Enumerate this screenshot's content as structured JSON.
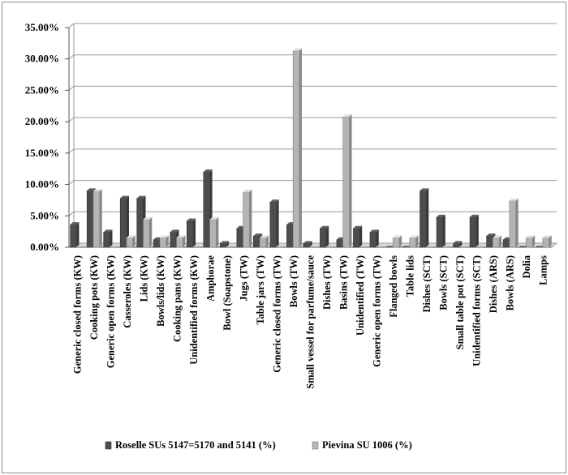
{
  "chart_data": {
    "type": "bar",
    "title": "",
    "xlabel": "",
    "ylabel": "",
    "ylim": [
      0,
      35
    ],
    "y_ticks": [
      "0.00%",
      "5.00%",
      "10.00%",
      "15.00%",
      "20.00%",
      "25.00%",
      "30.00%",
      "35.00%"
    ],
    "grid": true,
    "legend_position": "bottom",
    "categories": [
      "Generic closed forms (KW)",
      "Cooking pots (KW)",
      "Generic open forms (KW)",
      "Casseroles (KW)",
      "Lids (KW)",
      "Bowls/lids (KW)",
      "Cooking pans (KW)",
      "Unidentified forms (KW)",
      "Amphorae",
      "Bowl (Soapstone)",
      "Jugs (TW)",
      "Table jars (TW)",
      "Generic closed forms (TW)",
      "Bowls (TW)",
      "Small vessel for parfume/sauce",
      "Dishes (TW)",
      "Basins (TW)",
      "Unidentified (TW)",
      "Generic open forms  (TW)",
      "Flanged bowls",
      "Table lids",
      "Dishes (SCT)",
      "Bowls (SCT)",
      "Small table pot (SCT)",
      "Unidentified forms (SCT)",
      "Dishes (ARS)",
      "Bowls (ARS)",
      "Dolia",
      "Lamps"
    ],
    "series": [
      {
        "name": "Roselle SUs 5147=5170 and 5141 (%)",
        "color": "#4d4d4d",
        "values": [
          3.6,
          9.0,
          2.4,
          7.8,
          7.8,
          1.2,
          2.4,
          4.2,
          12.0,
          0.6,
          3.0,
          1.8,
          7.2,
          3.6,
          0.6,
          3.0,
          1.2,
          3.0,
          2.4,
          0.0,
          0.0,
          9.0,
          4.8,
          0.6,
          4.8,
          1.8,
          1.2,
          0.0,
          0.0
        ]
      },
      {
        "name": "Pievina SU 1006 (%)",
        "color": "#b4b4b4",
        "values": [
          0.0,
          8.9,
          0.0,
          1.5,
          4.4,
          1.5,
          1.5,
          0.0,
          4.4,
          0.0,
          8.8,
          1.5,
          0.0,
          31.3,
          0.0,
          0.0,
          20.8,
          0.0,
          0.0,
          1.5,
          1.5,
          0.0,
          0.0,
          0.0,
          0.0,
          1.5,
          7.4,
          1.5,
          1.5
        ]
      }
    ]
  }
}
